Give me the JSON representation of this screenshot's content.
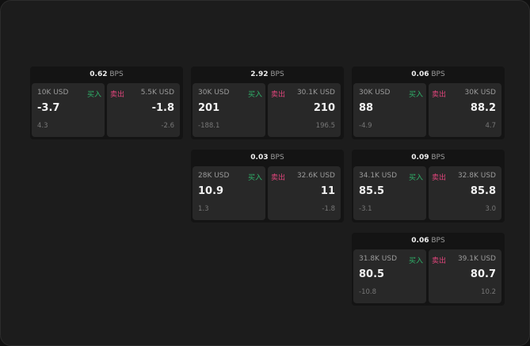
{
  "unit": "BPS",
  "buy_label": "买入",
  "sell_label": "卖出",
  "colors": {
    "buy": "#2fb36a",
    "sell": "#e0457b"
  },
  "widgets": [
    {
      "spread": "0.62",
      "buy": {
        "size": "10K USD",
        "price": "-3.7",
        "change": "4.3"
      },
      "sell": {
        "size": "5.5K USD",
        "price": "-1.8",
        "change": "-2.6"
      }
    },
    {
      "spread": "2.92",
      "buy": {
        "size": "30K USD",
        "price": "201",
        "change": "-188.1"
      },
      "sell": {
        "size": "30.1K USD",
        "price": "210",
        "change": "196.5"
      }
    },
    {
      "spread": "0.06",
      "buy": {
        "size": "30K USD",
        "price": "88",
        "change": "-4.9"
      },
      "sell": {
        "size": "30K USD",
        "price": "88.2",
        "change": "4.7"
      }
    },
    {
      "spread": "0.03",
      "buy": {
        "size": "28K USD",
        "price": "10.9",
        "change": "1.3"
      },
      "sell": {
        "size": "32.6K USD",
        "price": "11",
        "change": "-1.8"
      }
    },
    {
      "spread": "0.09",
      "buy": {
        "size": "34.1K USD",
        "price": "85.5",
        "change": "-3.1"
      },
      "sell": {
        "size": "32.8K USD",
        "price": "85.8",
        "change": "3.0"
      }
    },
    {
      "spread": "0.06",
      "buy": {
        "size": "31.8K USD",
        "price": "80.5",
        "change": "-10.8"
      },
      "sell": {
        "size": "39.1K USD",
        "price": "80.7",
        "change": "10.2"
      }
    }
  ]
}
